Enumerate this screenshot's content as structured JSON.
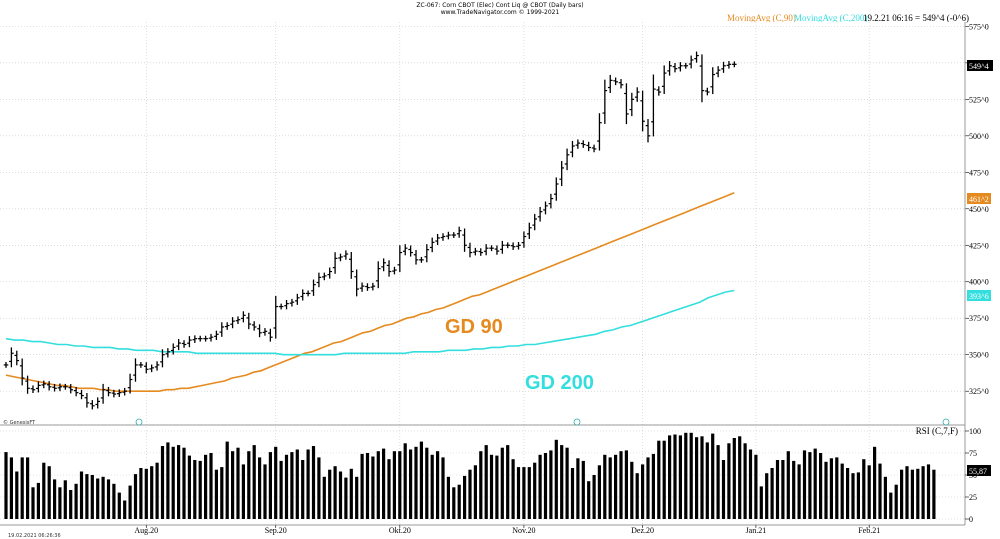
{
  "header": {
    "title_line1": "ZC-067: Corn CBOT (Elec) Cont Liq @ CBOT  (Daily bars)",
    "title_line2": "www.TradeNavigator.com © 1999-2021",
    "ma90_label": "MovingAvg (C,90)",
    "ma200_label": "MovingAvg (C,200)",
    "last_info": "19.2.21 06:16 = 549^4 (-0^6)"
  },
  "footer": {
    "copyright": "© GenesisFT",
    "timestamp": "19.02.2021 06:26:36"
  },
  "annotations": {
    "gd90": "GD 90",
    "gd200": "GD 200"
  },
  "badges": {
    "last_price": "549^4",
    "ma90_value": "461^2",
    "ma200_value": "393^6",
    "rsi_value": "55,87"
  },
  "colors": {
    "bars": "#000000",
    "ma90": "#e58a1e",
    "ma200": "#33dede",
    "grid": "#c8c8c8"
  },
  "chart_data": [
    {
      "type": "ohlc",
      "title": "ZC-067: Corn CBOT (Elec) Cont Liq @ CBOT (Daily bars)",
      "period": "daily",
      "ylim": [
        308,
        578
      ],
      "y_ticks": [
        "575^0",
        "550^0",
        "525^0",
        "500^0",
        "475^0",
        "450^0",
        "425^0",
        "400^0",
        "375^0",
        "350^0",
        "325^0"
      ],
      "y_tick_values": [
        575,
        550,
        525,
        500,
        475,
        450,
        425,
        400,
        375,
        350,
        325
      ],
      "x_ticks": [
        "Aug.20",
        "Sep.20",
        "Okt.20",
        "Nov.20",
        "Dez.20",
        "Jan.21",
        "Feb.21"
      ],
      "x_tick_index": [
        26,
        50,
        73,
        96,
        118,
        139,
        160
      ],
      "close": [
        343,
        351,
        346,
        334,
        327,
        326,
        329,
        330,
        328,
        327,
        328,
        328,
        326,
        324,
        322,
        317,
        315,
        318,
        326,
        324,
        323,
        324,
        325,
        333,
        343,
        343,
        340,
        341,
        343,
        350,
        352,
        355,
        358,
        357,
        360,
        361,
        361,
        361,
        362,
        364,
        369,
        370,
        373,
        374,
        377,
        371,
        369,
        365,
        366,
        362,
        383,
        383,
        385,
        386,
        389,
        392,
        392,
        398,
        403,
        404,
        407,
        416,
        417,
        419,
        407,
        395,
        397,
        396,
        397,
        409,
        413,
        407,
        408,
        420,
        423,
        420,
        415,
        415,
        422,
        427,
        430,
        431,
        432,
        432,
        435,
        425,
        420,
        421,
        420,
        423,
        423,
        421,
        425,
        425,
        424,
        425,
        431,
        437,
        443,
        448,
        452,
        457,
        467,
        478,
        487,
        493,
        495,
        494,
        492,
        491,
        509,
        531,
        538,
        537,
        535,
        515,
        525,
        530,
        510,
        500,
        532,
        530,
        543,
        548,
        546,
        548,
        548,
        552,
        555,
        531,
        530,
        542,
        545,
        548,
        549,
        549
      ],
      "series": [
        {
          "name": "MovingAvg (C,90)",
          "values": [
            336,
            335,
            334,
            333,
            332,
            331,
            330,
            329,
            329,
            328,
            327,
            327,
            327,
            326,
            326,
            325,
            325,
            325,
            325,
            325,
            325,
            325,
            326,
            326,
            327,
            327,
            328,
            329,
            330,
            331,
            332,
            334,
            335,
            336,
            338,
            339,
            341,
            343,
            345,
            347,
            349,
            351,
            352,
            354,
            356,
            358,
            359,
            361,
            363,
            365,
            366,
            368,
            370,
            371,
            373,
            375,
            376,
            378,
            379,
            381,
            382,
            384,
            386,
            388,
            390,
            391,
            393,
            395,
            397,
            399,
            401,
            403,
            405,
            407,
            409,
            411,
            413,
            415,
            417,
            419,
            421,
            423,
            425,
            427,
            429,
            431,
            433,
            435,
            437,
            439,
            441,
            443,
            445,
            447,
            449,
            451,
            453,
            455,
            457,
            459,
            461
          ]
        },
        {
          "name": "MovingAvg (C,200)",
          "values": [
            361,
            360,
            360,
            359,
            359,
            358,
            357,
            357,
            356,
            356,
            355,
            355,
            355,
            354,
            354,
            353,
            353,
            353,
            352,
            352,
            352,
            352,
            351,
            351,
            351,
            351,
            351,
            351,
            351,
            351,
            351,
            351,
            350,
            350,
            350,
            350,
            350,
            350,
            350,
            351,
            351,
            351,
            351,
            351,
            351,
            351,
            351,
            352,
            352,
            352,
            352,
            353,
            353,
            353,
            354,
            354,
            355,
            355,
            356,
            356,
            357,
            357,
            358,
            359,
            360,
            361,
            362,
            363,
            364,
            366,
            367,
            369,
            370,
            372,
            374,
            376,
            378,
            380,
            382,
            384,
            386,
            389,
            391,
            393,
            394
          ]
        }
      ]
    },
    {
      "type": "bar",
      "title": "RSI (C,7,F)",
      "ylim": [
        0,
        100
      ],
      "y_ticks": [
        "100",
        "75",
        "50",
        "25",
        "0"
      ],
      "y_tick_values": [
        100,
        75,
        50,
        25,
        0
      ],
      "values": [
        76,
        70,
        54,
        70,
        70,
        36,
        41,
        64,
        60,
        45,
        36,
        44,
        33,
        40,
        54,
        51,
        50,
        46,
        48,
        45,
        40,
        30,
        21,
        38,
        51,
        58,
        57,
        60,
        64,
        83,
        87,
        82,
        84,
        81,
        72,
        67,
        66,
        73,
        75,
        56,
        59,
        88,
        77,
        81,
        62,
        77,
        84,
        70,
        62,
        76,
        82,
        66,
        73,
        76,
        79,
        67,
        79,
        83,
        70,
        48,
        56,
        60,
        54,
        47,
        57,
        48,
        74,
        75,
        71,
        77,
        80,
        68,
        77,
        77,
        86,
        79,
        82,
        88,
        81,
        73,
        77,
        70,
        48,
        36,
        39,
        49,
        56,
        61,
        77,
        84,
        73,
        72,
        81,
        84,
        68,
        59,
        59,
        59,
        64,
        73,
        75,
        78,
        90,
        84,
        81,
        58,
        69,
        66,
        43,
        50,
        61,
        73,
        70,
        73,
        77,
        78,
        65,
        52,
        62,
        70,
        74,
        89,
        89,
        95,
        96,
        95,
        98,
        98,
        93,
        94,
        87,
        97,
        84,
        67,
        86,
        92,
        94,
        86,
        79,
        73,
        37,
        52,
        58,
        67,
        67,
        77,
        66,
        62,
        78,
        76,
        80,
        75,
        65,
        69,
        70,
        63,
        58,
        52,
        53,
        68,
        61,
        82,
        63,
        48,
        30,
        39,
        56,
        60,
        56,
        57,
        60,
        62,
        56
      ]
    }
  ]
}
